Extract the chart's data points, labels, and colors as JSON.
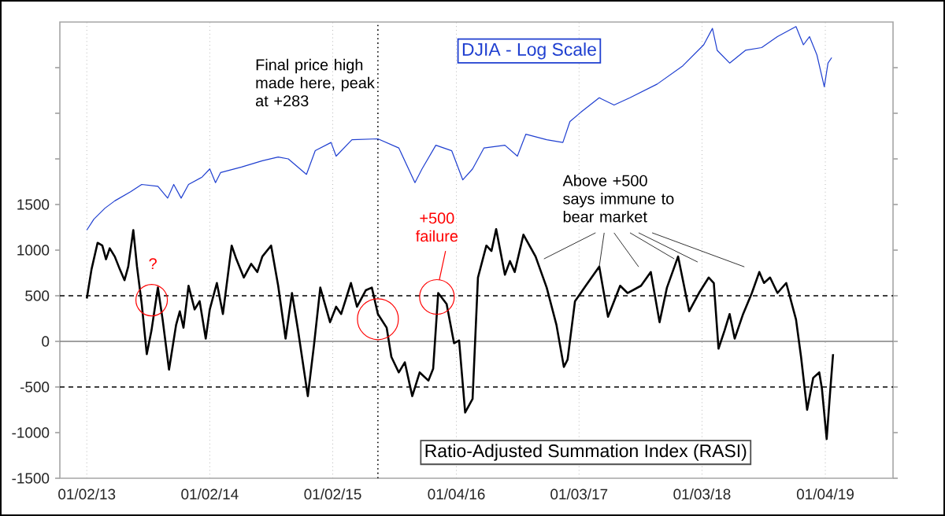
{
  "chart_data": {
    "type": "line",
    "xlim": [
      "2012-10-13",
      "2019-07-24"
    ],
    "ylim": [
      -1500,
      3500
    ],
    "xticks": [
      {
        "value": "2013-01-02",
        "label": "01/02/13"
      },
      {
        "value": "2014-01-02",
        "label": "01/02/14"
      },
      {
        "value": "2015-01-02",
        "label": "01/02/15"
      },
      {
        "value": "2016-01-04",
        "label": "01/04/16"
      },
      {
        "value": "2017-01-03",
        "label": "01/03/17"
      },
      {
        "value": "2018-01-03",
        "label": "01/03/18"
      },
      {
        "value": "2019-01-04",
        "label": "01/04/19"
      }
    ],
    "yticks": [
      -1500,
      -1000,
      -500,
      0,
      500,
      1000,
      1500,
      {
        "value": 2000,
        "label": null
      },
      {
        "value": 2500,
        "label": null
      },
      {
        "value": 3000,
        "label": null
      }
    ],
    "grid": "x",
    "series": [
      {
        "name": "DJIA - Log Scale",
        "color": "#1f3fd0",
        "x": [
          "2013-01-02",
          "2013-01-23",
          "2013-02-25",
          "2013-03-26",
          "2013-05-12",
          "2013-06-14",
          "2013-08-01",
          "2013-08-30",
          "2013-09-17",
          "2013-10-09",
          "2013-10-31",
          "2013-12-10",
          "2014-01-02",
          "2014-01-19",
          "2014-02-03",
          "2014-04-06",
          "2014-06-07",
          "2014-07-24",
          "2014-08-23",
          "2014-10-16",
          "2014-11-11",
          "2014-12-28",
          "2015-01-12",
          "2015-02-28",
          "2015-05-16",
          "2015-07-17",
          "2015-09-03",
          "2015-09-24",
          "2015-11-04",
          "2015-12-21",
          "2016-01-23",
          "2016-02-21",
          "2016-03-26",
          "2016-05-27",
          "2016-07-03",
          "2016-07-28",
          "2016-09-28",
          "2016-11-15",
          "2016-12-06",
          "2017-01-08",
          "2017-03-04",
          "2017-04-17",
          "2017-06-03",
          "2017-08-23",
          "2017-11-07",
          "2018-01-08",
          "2018-02-03",
          "2018-02-17",
          "2018-03-26",
          "2018-05-12",
          "2018-06-29",
          "2018-08-15",
          "2018-10-09",
          "2018-10-31",
          "2018-11-18",
          "2018-12-10",
          "2019-01-01",
          "2019-01-12",
          "2019-01-23"
        ],
        "values": [
          1220,
          1340,
          1460,
          1540,
          1640,
          1720,
          1700,
          1570,
          1720,
          1570,
          1720,
          1800,
          1890,
          1740,
          1850,
          1910,
          1980,
          2020,
          2000,
          1830,
          2090,
          2180,
          2030,
          2210,
          2220,
          2120,
          1740,
          1890,
          2150,
          2090,
          1770,
          1890,
          2120,
          2150,
          2030,
          2270,
          2210,
          2180,
          2410,
          2510,
          2670,
          2590,
          2670,
          2820,
          3020,
          3250,
          3430,
          3190,
          3050,
          3190,
          3220,
          3340,
          3450,
          3250,
          3340,
          3140,
          2790,
          3050,
          3110
        ]
      },
      {
        "name": "Ratio-Adjusted Summation Index (RASI)",
        "color": "#000000",
        "x": [
          "2013-01-02",
          "2013-01-16",
          "2013-02-03",
          "2013-02-17",
          "2013-02-28",
          "2013-03-11",
          "2013-03-26",
          "2013-04-10",
          "2013-04-24",
          "2013-05-05",
          "2013-05-20",
          "2013-05-31",
          "2013-06-14",
          "2013-06-29",
          "2013-07-13",
          "2013-08-01",
          "2013-08-15",
          "2013-09-03",
          "2013-09-24",
          "2013-10-05",
          "2013-10-16",
          "2013-10-31",
          "2013-11-18",
          "2013-12-03",
          "2013-12-21",
          "2014-01-02",
          "2014-01-23",
          "2014-02-10",
          "2014-03-08",
          "2014-03-22",
          "2014-04-13",
          "2014-05-05",
          "2014-05-23",
          "2014-06-07",
          "2014-07-03",
          "2014-07-24",
          "2014-08-15",
          "2014-09-03",
          "2014-09-21",
          "2014-10-20",
          "2014-11-07",
          "2014-11-26",
          "2014-12-25",
          "2015-01-12",
          "2015-01-27",
          "2015-02-25",
          "2015-03-15",
          "2015-04-10",
          "2015-04-28",
          "2015-05-16",
          "2015-06-11",
          "2015-06-25",
          "2015-07-17",
          "2015-08-04",
          "2015-08-26",
          "2015-09-17",
          "2015-10-13",
          "2015-10-27",
          "2015-11-11",
          "2015-12-06",
          "2015-12-28",
          "2016-01-12",
          "2016-01-30",
          "2016-02-21",
          "2016-03-08",
          "2016-04-02",
          "2016-04-17",
          "2016-05-01",
          "2016-05-27",
          "2016-06-11",
          "2016-06-25",
          "2016-07-21",
          "2016-08-26",
          "2016-09-28",
          "2016-10-27",
          "2016-11-18",
          "2016-11-29",
          "2016-12-21",
          "2017-01-23",
          "2017-03-04",
          "2017-03-30",
          "2017-05-05",
          "2017-05-27",
          "2017-07-06",
          "2017-08-04",
          "2017-08-30",
          "2017-09-21",
          "2017-10-24",
          "2017-11-26",
          "2017-12-25",
          "2018-01-23",
          "2018-02-07",
          "2018-02-21",
          "2018-03-11",
          "2018-03-26",
          "2018-04-10",
          "2018-05-05",
          "2018-05-31",
          "2018-06-22",
          "2018-07-06",
          "2018-07-24",
          "2018-08-15",
          "2018-09-10",
          "2018-10-09",
          "2018-10-24",
          "2018-11-11",
          "2018-11-29",
          "2018-12-17",
          "2018-12-25",
          "2019-01-08",
          "2019-01-19",
          "2019-01-27"
        ],
        "values": [
          470,
          790,
          1080,
          1050,
          900,
          1020,
          930,
          790,
          670,
          820,
          1220,
          820,
          410,
          -140,
          120,
          590,
          240,
          -310,
          180,
          330,
          150,
          610,
          350,
          440,
          30,
          350,
          640,
          300,
          1050,
          900,
          700,
          850,
          760,
          930,
          1050,
          610,
          30,
          530,
          120,
          -600,
          -50,
          590,
          210,
          380,
          300,
          640,
          380,
          560,
          590,
          300,
          150,
          -170,
          -340,
          -230,
          -600,
          -340,
          -430,
          -300,
          530,
          410,
          -20,
          10,
          -780,
          -630,
          700,
          1050,
          990,
          1230,
          730,
          880,
          760,
          1170,
          930,
          590,
          180,
          -280,
          -200,
          440,
          610,
          820,
          270,
          610,
          530,
          610,
          760,
          210,
          590,
          930,
          330,
          530,
          700,
          640,
          -80,
          120,
          300,
          30,
          300,
          530,
          760,
          640,
          700,
          530,
          640,
          240,
          -170,
          -750,
          -400,
          -340,
          -520,
          -1070,
          -520,
          -140
        ]
      }
    ],
    "ref_lines": [
      {
        "axis": "y",
        "value": 500,
        "color": "#000000",
        "line_style": "dashed"
      },
      {
        "axis": "y",
        "value": -500,
        "color": "#000000",
        "line_style": "dashed"
      },
      {
        "axis": "y",
        "value": 0,
        "color": "#808080",
        "line_style": "solid"
      },
      {
        "axis": "x",
        "value": "2015-05-16",
        "color": "#000000",
        "line_style": "dotted"
      }
    ],
    "annotations": [
      "Final price high made here, peak at +283",
      "?",
      "+500 failure",
      {
        "text": "Above +500 says immune to bear market",
        "x": "2017-03-04",
        "y": 820
      }
    ]
  }
}
